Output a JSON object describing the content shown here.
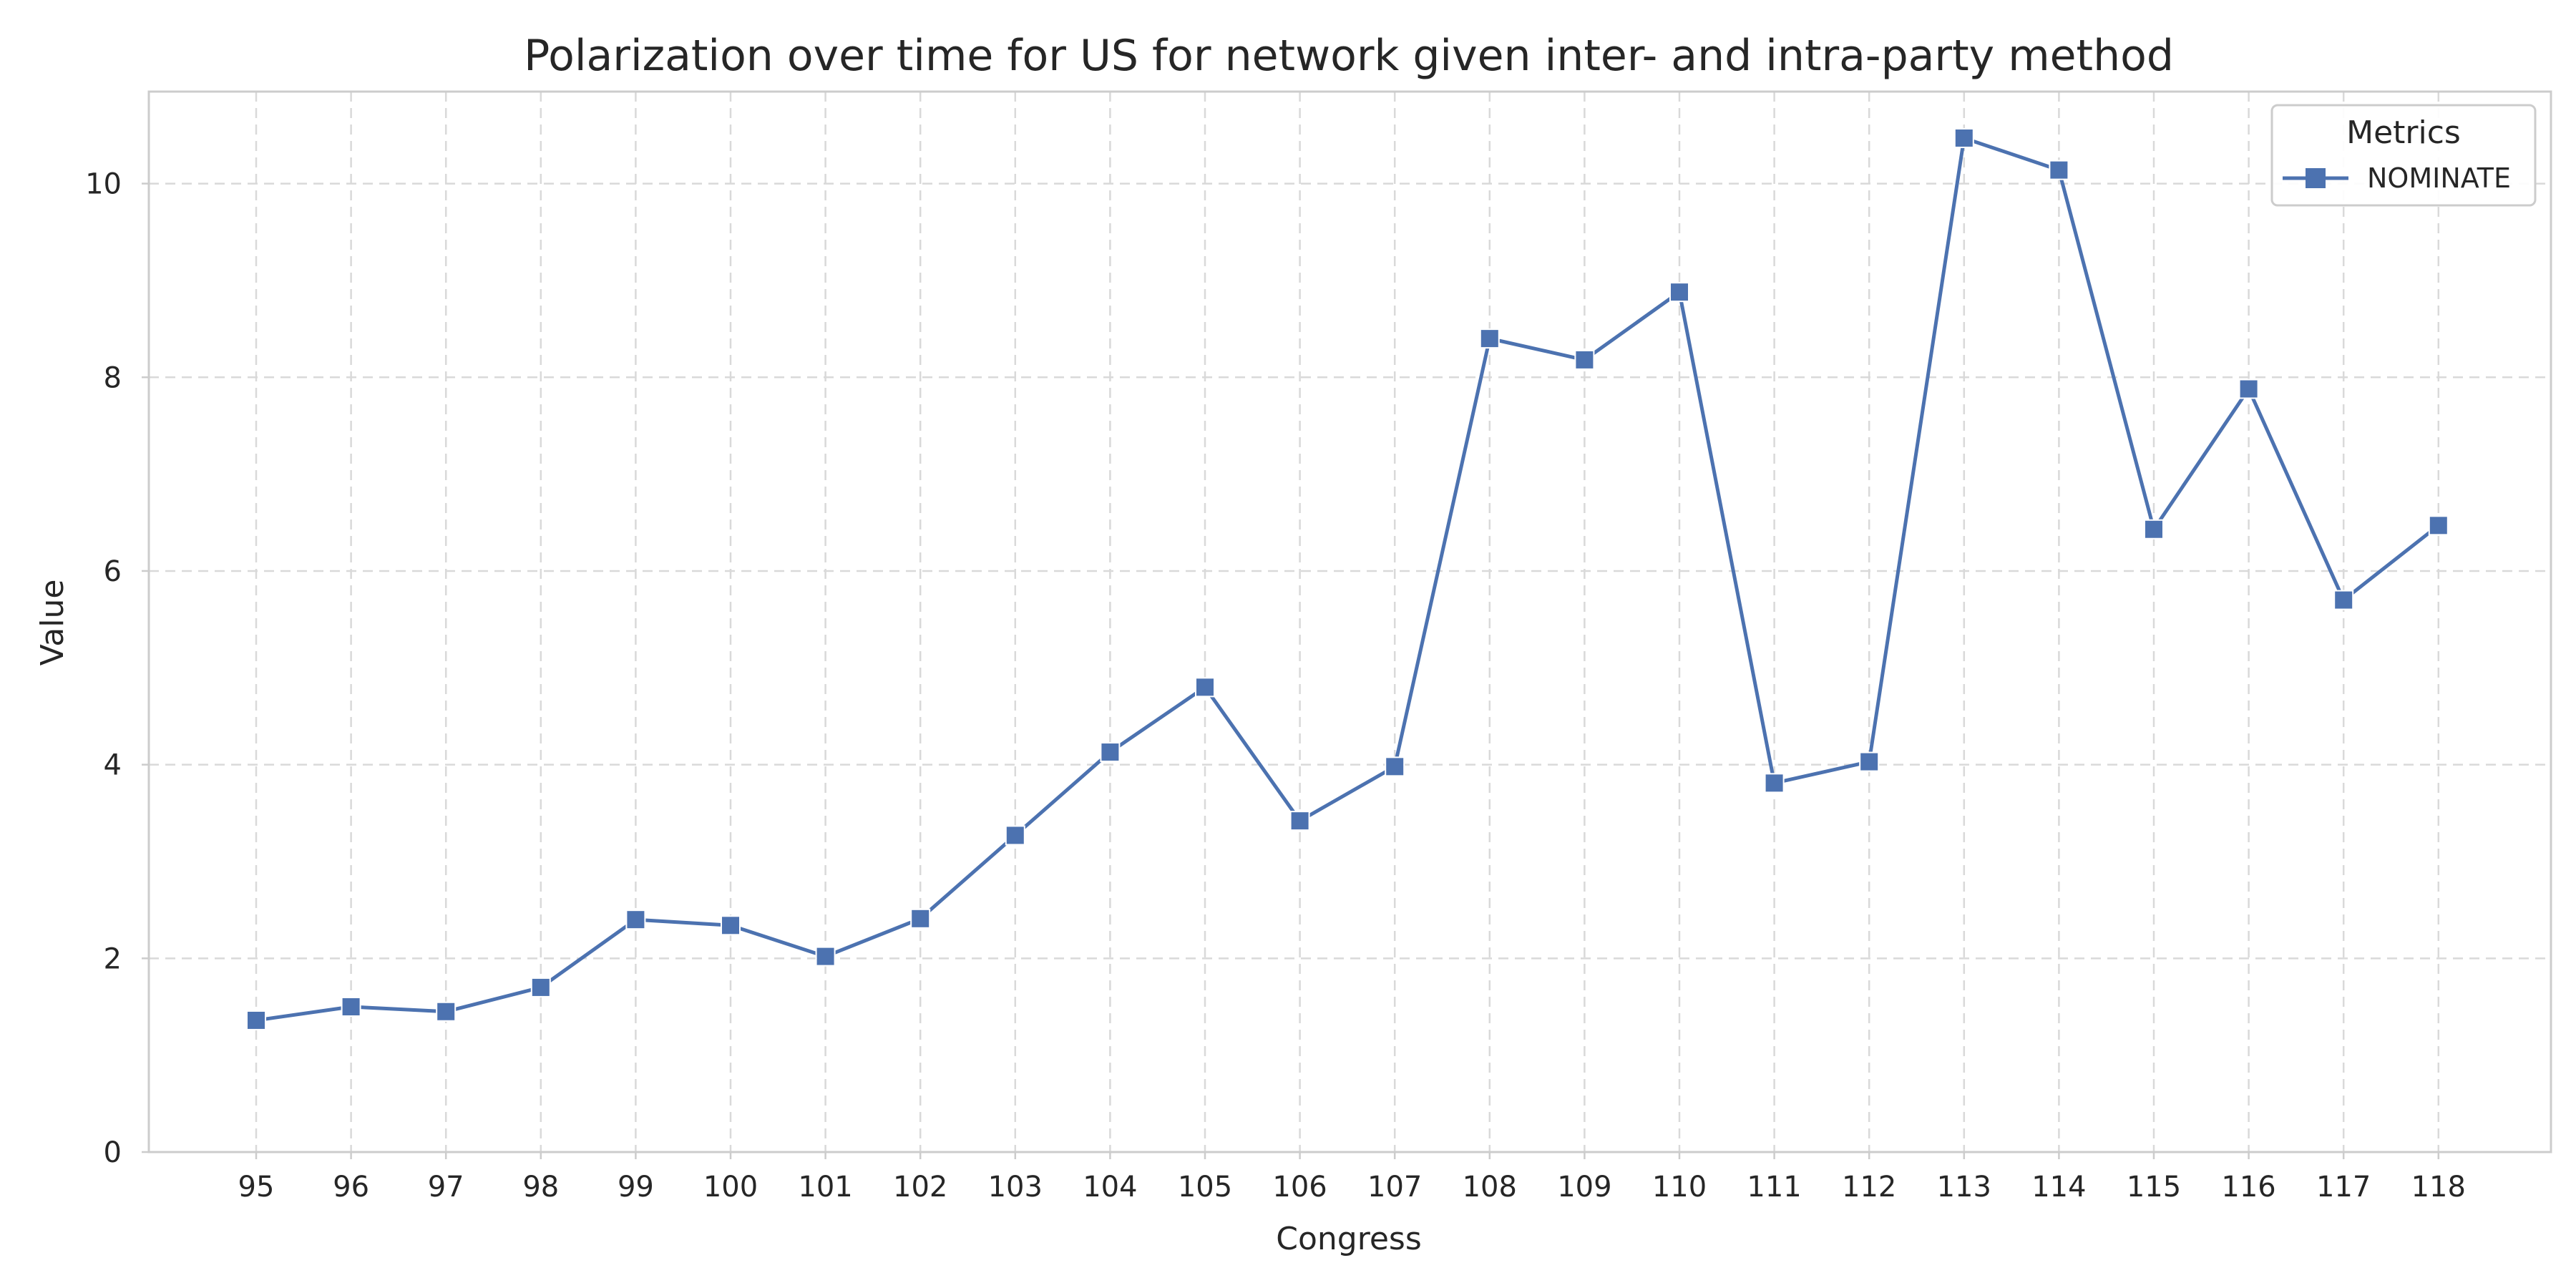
{
  "chart_data": {
    "type": "line",
    "title": "Polarization over time for US for network given inter- and intra-party method",
    "xlabel": "Congress",
    "ylabel": "Value",
    "categories": [
      "95",
      "96",
      "97",
      "98",
      "99",
      "100",
      "101",
      "102",
      "103",
      "104",
      "105",
      "106",
      "107",
      "108",
      "109",
      "110",
      "111",
      "112",
      "113",
      "114",
      "115",
      "116",
      "117",
      "118"
    ],
    "series": [
      {
        "name": "NOMINATE",
        "color": "#4c72b0",
        "marker": "square",
        "values": [
          1.36,
          1.5,
          1.45,
          1.7,
          2.4,
          2.34,
          2.02,
          2.41,
          3.27,
          4.13,
          4.8,
          3.42,
          3.98,
          8.4,
          8.18,
          8.88,
          3.81,
          4.03,
          10.47,
          10.14,
          6.43,
          7.88,
          5.7,
          6.47
        ]
      }
    ],
    "ylim": [
      0,
      10.95
    ],
    "yticks": [
      0,
      2,
      4,
      6,
      8,
      10
    ],
    "grid": true,
    "legend": {
      "title": "Metrics",
      "placement": "top-right"
    }
  }
}
